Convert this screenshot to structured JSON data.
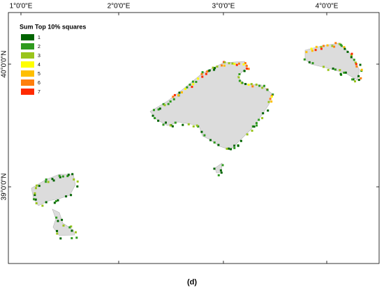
{
  "map": {
    "x_labels": [
      "1°0'0\"E",
      "2°0'0\"E",
      "3°0'0\"E",
      "4°0'0\"E"
    ],
    "y_labels": [
      "40°0'0\"N",
      "39°0'0\"N"
    ],
    "legend": {
      "title": "Sum Top 10% squares",
      "items": [
        {
          "label": 1,
          "color": "#006400"
        },
        {
          "label": 2,
          "color": "#2e9a1e"
        },
        {
          "label": 3,
          "color": "#9ac41c"
        },
        {
          "label": 4,
          "color": "#ffff00"
        },
        {
          "label": 5,
          "color": "#ffbf00"
        },
        {
          "label": 6,
          "color": "#ff7f0e"
        },
        {
          "label": 7,
          "color": "#ff2a00"
        }
      ]
    },
    "caption": "(d)"
  }
}
